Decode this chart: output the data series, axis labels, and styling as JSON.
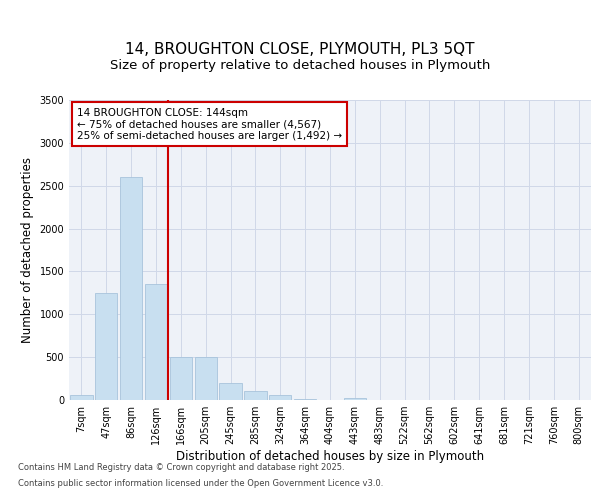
{
  "title_line1": "14, BROUGHTON CLOSE, PLYMOUTH, PL3 5QT",
  "title_line2": "Size of property relative to detached houses in Plymouth",
  "xlabel": "Distribution of detached houses by size in Plymouth",
  "ylabel": "Number of detached properties",
  "categories": [
    "7sqm",
    "47sqm",
    "86sqm",
    "126sqm",
    "166sqm",
    "205sqm",
    "245sqm",
    "285sqm",
    "324sqm",
    "364sqm",
    "404sqm",
    "443sqm",
    "483sqm",
    "522sqm",
    "562sqm",
    "602sqm",
    "641sqm",
    "681sqm",
    "721sqm",
    "760sqm",
    "800sqm"
  ],
  "values": [
    55,
    1250,
    2600,
    1350,
    500,
    500,
    200,
    110,
    55,
    10,
    0,
    20,
    0,
    0,
    0,
    0,
    0,
    0,
    0,
    0,
    0
  ],
  "bar_color": "#c8dff0",
  "bar_edge_color": "#a8c4dc",
  "vline_x_index": 3,
  "vline_color": "#cc0000",
  "annotation_text": "14 BROUGHTON CLOSE: 144sqm\n← 75% of detached houses are smaller (4,567)\n25% of semi-detached houses are larger (1,492) →",
  "annotation_box_edgecolor": "#cc0000",
  "annotation_box_facecolor": "white",
  "ylim": [
    0,
    3500
  ],
  "yticks": [
    0,
    500,
    1000,
    1500,
    2000,
    2500,
    3000,
    3500
  ],
  "grid_color": "#d0d8e8",
  "background_color": "#eef2f8",
  "footer_line1": "Contains HM Land Registry data © Crown copyright and database right 2025.",
  "footer_line2": "Contains public sector information licensed under the Open Government Licence v3.0.",
  "title_fontsize": 11,
  "subtitle_fontsize": 9.5,
  "tick_fontsize": 7,
  "label_fontsize": 8.5,
  "annotation_fontsize": 7.5,
  "footer_fontsize": 6
}
